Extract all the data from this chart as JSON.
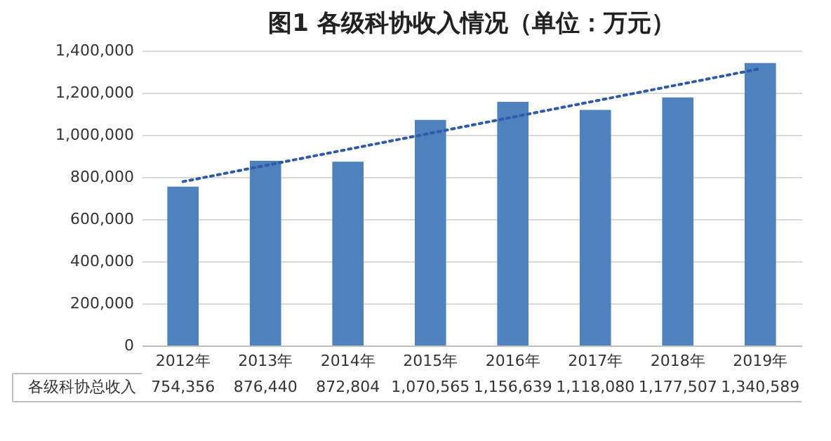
{
  "chart_data": {
    "type": "bar",
    "title": "图1 各级科协收入情况（单位：万元）",
    "categories": [
      "2012年",
      "2013年",
      "2014年",
      "2015年",
      "2016年",
      "2017年",
      "2018年",
      "2019年"
    ],
    "series": [
      {
        "name": "各级科协总收入",
        "color": "#4f81bd",
        "values": [
          754356,
          876440,
          872804,
          1070565,
          1156639,
          1118080,
          1177507,
          1340589
        ],
        "value_labels": [
          "754,356",
          "876,440",
          "872,804",
          "1,070,565",
          "1,156,639",
          "1,118,080",
          "1,177,507",
          "1,340,589"
        ]
      },
      {
        "type": "line",
        "color": "#2f5aa8",
        "line_style": "dotted",
        "x": [
          "2012年",
          "2019年"
        ],
        "values": [
          778000,
          1314000
        ]
      }
    ],
    "ylim": [
      0,
      1400000
    ],
    "yticks": [
      0,
      {
        "value": 200000,
        "label": "200,000"
      },
      {
        "value": 400000,
        "label": "400,000"
      },
      {
        "value": 600000,
        "label": "600,000"
      },
      {
        "value": 800000,
        "label": "800,000"
      },
      {
        "value": 1000000,
        "label": "1,000,000"
      },
      {
        "value": 1200000,
        "label": "1,200,000"
      },
      {
        "value": 1400000,
        "label": "1,400,000"
      }
    ],
    "grid": "y"
  }
}
